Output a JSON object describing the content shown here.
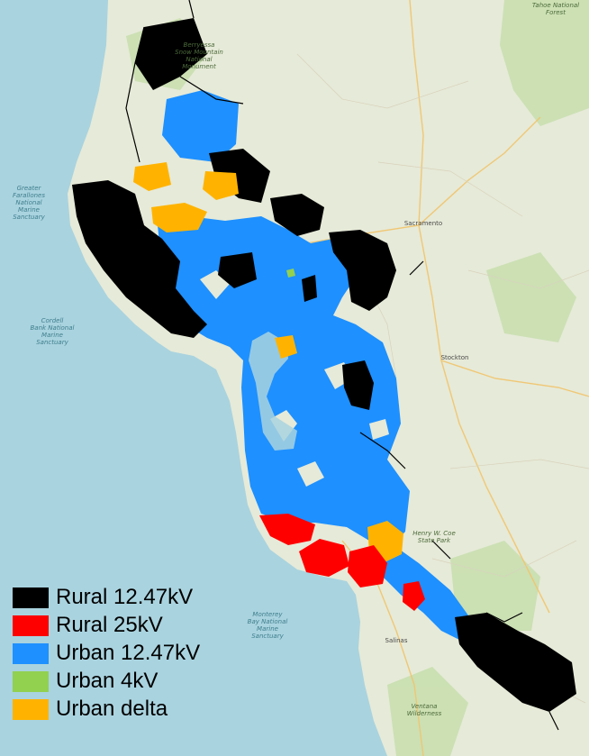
{
  "map": {
    "labels": {
      "greater_farallones": "Greater\nFarallones\nNational\nMarine\nSanctuary",
      "cordell_bank": "Cordell\nBank National\nMarine\nSanctuary",
      "monterey_bay": "Monterey\nBay National\nMarine\nSanctuary",
      "tahoe": "Tahoe National\nForest",
      "sacramento": "Sacramento",
      "stockton": "Stockton",
      "salinas": "Salinas",
      "berryessa": "Berryessa\nSnow Mountain\nNational\nMonument",
      "ventana": "Ventana\nWilderness",
      "henry_coe": "Henry W. Coe\nState Park"
    }
  },
  "legend": {
    "items": [
      {
        "label": "Rural 12.47kV",
        "color": "#000000"
      },
      {
        "label": "Rural 25kV",
        "color": "#ff0000"
      },
      {
        "label": "Urban 12.47kV",
        "color": "#1e90ff"
      },
      {
        "label": "Urban 4kV",
        "color": "#92d050"
      },
      {
        "label": "Urban delta",
        "color": "#ffb300"
      }
    ]
  },
  "colors": {
    "ocean": "#a9d3df",
    "land": "#e6ead8",
    "forest": "#c9dfb0",
    "road": "#f2c46b"
  }
}
